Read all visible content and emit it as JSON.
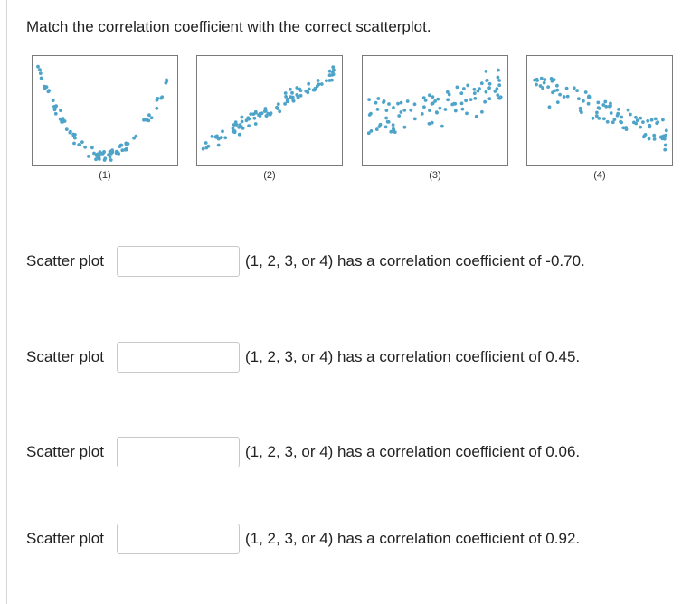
{
  "question": "Match the correlation coefficient with the correct scatterplot.",
  "plots": [
    {
      "label": "(1)",
      "shape": "u-curve"
    },
    {
      "label": "(2)",
      "shape": "strong-positive"
    },
    {
      "label": "(3)",
      "shape": "weak-positive"
    },
    {
      "label": "(4)",
      "shape": "negative"
    }
  ],
  "dot_color": "#4ea3c9",
  "rows": [
    {
      "prefix": "Scatter plot",
      "value": "",
      "suffix": "(1, 2, 3, or 4) has a correlation coefficient of -0.70."
    },
    {
      "prefix": "Scatter plot",
      "value": "",
      "suffix": "(1, 2, 3, or 4) has a correlation coefficient of 0.45."
    },
    {
      "prefix": "Scatter plot",
      "value": "",
      "suffix": "(1, 2, 3, or 4) has a correlation coefficient of 0.06."
    },
    {
      "prefix": "Scatter plot",
      "value": "",
      "suffix": "(1, 2, 3, or 4) has a correlation coefficient of 0.92."
    }
  ]
}
